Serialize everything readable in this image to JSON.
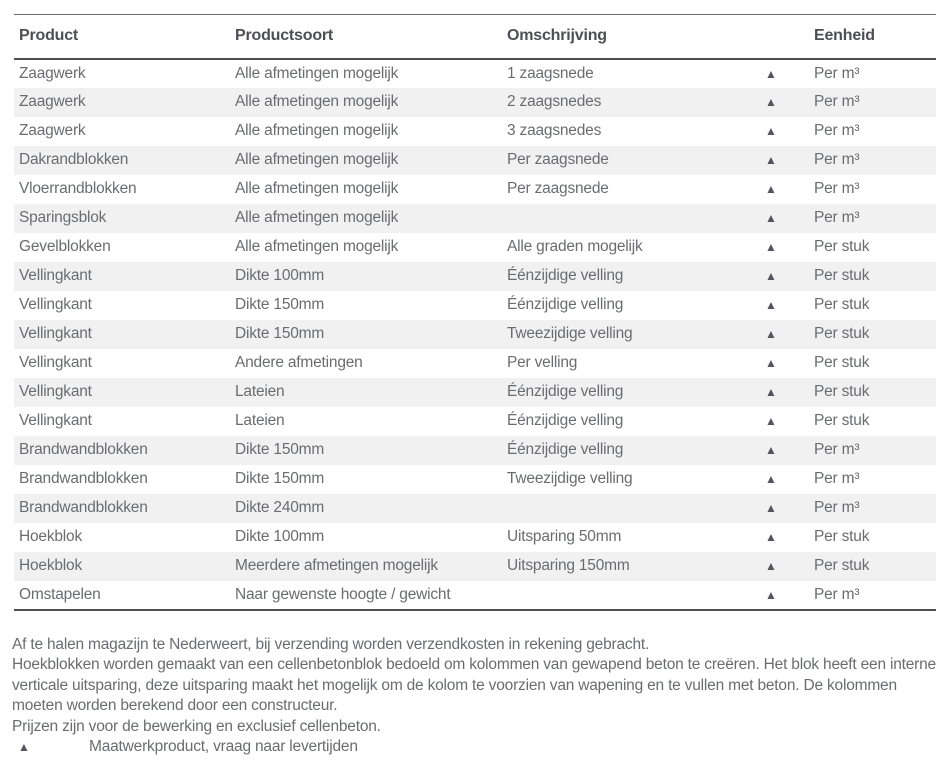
{
  "table": {
    "columns": {
      "product": "Product",
      "soort": "Productsoort",
      "omschrijving": "Omschrijving",
      "eenheid": "Eenheid"
    },
    "triangle_icon": "▲",
    "rows": [
      {
        "product": "Zaagwerk",
        "soort": "Alle afmetingen mogelijk",
        "omschrijving": "1 zaagsnede",
        "eenheid": "Per m³"
      },
      {
        "product": "Zaagwerk",
        "soort": "Alle afmetingen mogelijk",
        "omschrijving": "2 zaagsnedes",
        "eenheid": "Per m³"
      },
      {
        "product": "Zaagwerk",
        "soort": "Alle afmetingen mogelijk",
        "omschrijving": "3 zaagsnedes",
        "eenheid": "Per m³"
      },
      {
        "product": "Dakrandblokken",
        "soort": "Alle afmetingen mogelijk",
        "omschrijving": "Per zaagsnede",
        "eenheid": "Per m³"
      },
      {
        "product": "Vloerrandblokken",
        "soort": "Alle afmetingen mogelijk",
        "omschrijving": "Per zaagsnede",
        "eenheid": "Per m³"
      },
      {
        "product": "Sparingsblok",
        "soort": "Alle afmetingen mogelijk",
        "omschrijving": "",
        "eenheid": "Per m³"
      },
      {
        "product": "Gevelblokken",
        "soort": "Alle afmetingen mogelijk",
        "omschrijving": "Alle graden mogelijk",
        "eenheid": "Per stuk"
      },
      {
        "product": "Vellingkant",
        "soort": "Dikte 100mm",
        "omschrijving": "Éénzijdige velling",
        "eenheid": "Per stuk"
      },
      {
        "product": "Vellingkant",
        "soort": "Dikte 150mm",
        "omschrijving": "Éénzijdige velling",
        "eenheid": "Per stuk"
      },
      {
        "product": "Vellingkant",
        "soort": "Dikte 150mm",
        "omschrijving": "Tweezijdige velling",
        "eenheid": "Per stuk"
      },
      {
        "product": "Vellingkant",
        "soort": "Andere afmetingen",
        "omschrijving": "Per velling",
        "eenheid": "Per stuk"
      },
      {
        "product": "Vellingkant",
        "soort": "Lateien",
        "omschrijving": "Éénzijdige velling",
        "eenheid": "Per stuk"
      },
      {
        "product": "Vellingkant",
        "soort": "Lateien",
        "omschrijving": "Éénzijdige velling",
        "eenheid": "Per stuk"
      },
      {
        "product": "Brandwandblokken",
        "soort": "Dikte 150mm",
        "omschrijving": "Éénzijdige velling",
        "eenheid": "Per m³"
      },
      {
        "product": "Brandwandblokken",
        "soort": "Dikte 150mm",
        "omschrijving": "Tweezijdige velling",
        "eenheid": "Per m³"
      },
      {
        "product": "Brandwandblokken",
        "soort": "Dikte 240mm",
        "omschrijving": "",
        "eenheid": "Per m³"
      },
      {
        "product": "Hoekblok",
        "soort": "Dikte 100mm",
        "omschrijving": "Uitsparing 50mm",
        "eenheid": "Per stuk"
      },
      {
        "product": "Hoekblok",
        "soort": "Meerdere afmetingen mogelijk",
        "omschrijving": "Uitsparing 150mm",
        "eenheid": "Per stuk"
      },
      {
        "product": "Omstapelen",
        "soort": "Naar gewenste hoogte / gewicht",
        "omschrijving": "",
        "eenheid": "Per m³"
      }
    ]
  },
  "footer": {
    "note_pickup": "Af te halen magazijn te Nederweert, bij verzending worden verzendkosten in rekening gebracht.",
    "note_hoekblokken": "Hoekblokken worden gemaakt van een cellenbetonblok bedoeld om kolommen van gewapend beton te creëren. Het blok heeft een interne verticale uitsparing, deze uitsparing maakt het mogelijk om de kolom te voorzien van wapening en te vullen met beton. De kolommen moeten worden berekend door een constructeur.",
    "note_prices": "Prijzen zijn voor de bewerking en exclusief cellenbeton.",
    "legend_symbol": "▲",
    "legend_text": "Maatwerkproduct, vraag naar levertijden"
  },
  "colors": {
    "background": "#ffffff",
    "text": "#6b6c6e",
    "heading": "#4e4f53",
    "stripe": "#f1f1f2",
    "rule": "#4e4f53",
    "triangle": "#54565b"
  }
}
